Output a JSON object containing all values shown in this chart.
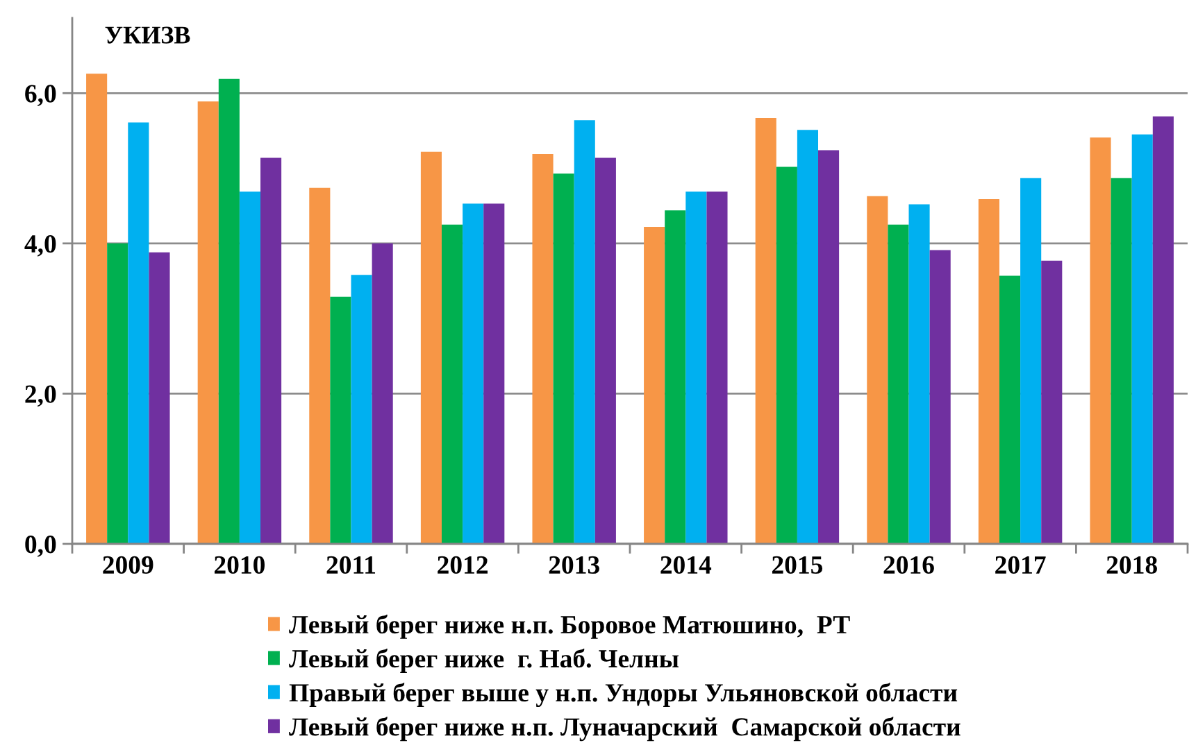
{
  "chart_data": {
    "type": "bar",
    "ylabel": "УКИЗВ",
    "categories": [
      "2009",
      "2010",
      "2011",
      "2012",
      "2013",
      "2014",
      "2015",
      "2016",
      "2017",
      "2018"
    ],
    "series": [
      {
        "name": "Левый берег ниже н.п. Боровое Матюшино,  РТ",
        "color": "#f79646",
        "values": [
          6.26,
          5.89,
          4.74,
          5.22,
          5.19,
          4.22,
          5.67,
          4.63,
          4.59,
          5.41
        ]
      },
      {
        "name": "Левый берег ниже  г. Наб. Челны",
        "color": "#00b050",
        "values": [
          4.0,
          6.19,
          3.29,
          4.25,
          4.93,
          4.44,
          5.02,
          4.25,
          3.57,
          4.87
        ]
      },
      {
        "name": "Правый берег выше у н.п. Ундоры Ульяновской области",
        "color": "#00b0f0",
        "values": [
          5.61,
          4.69,
          3.58,
          4.53,
          5.64,
          4.69,
          5.51,
          4.52,
          4.87,
          5.45
        ]
      },
      {
        "name": "Левый берег ниже н.п. Луначарский  Самарской области",
        "color": "#7030a0",
        "values": [
          3.88,
          5.14,
          4.0,
          4.53,
          5.14,
          4.69,
          5.24,
          3.91,
          3.77,
          5.69
        ]
      }
    ],
    "ylim": [
      0,
      7
    ],
    "yticks": [
      {
        "value": 0,
        "label": "0,0"
      },
      {
        "value": 2,
        "label": "2,0"
      },
      {
        "value": 4,
        "label": "4,0"
      },
      {
        "value": 6,
        "label": "6,0"
      }
    ],
    "grid": "y",
    "legend": "bottom"
  }
}
